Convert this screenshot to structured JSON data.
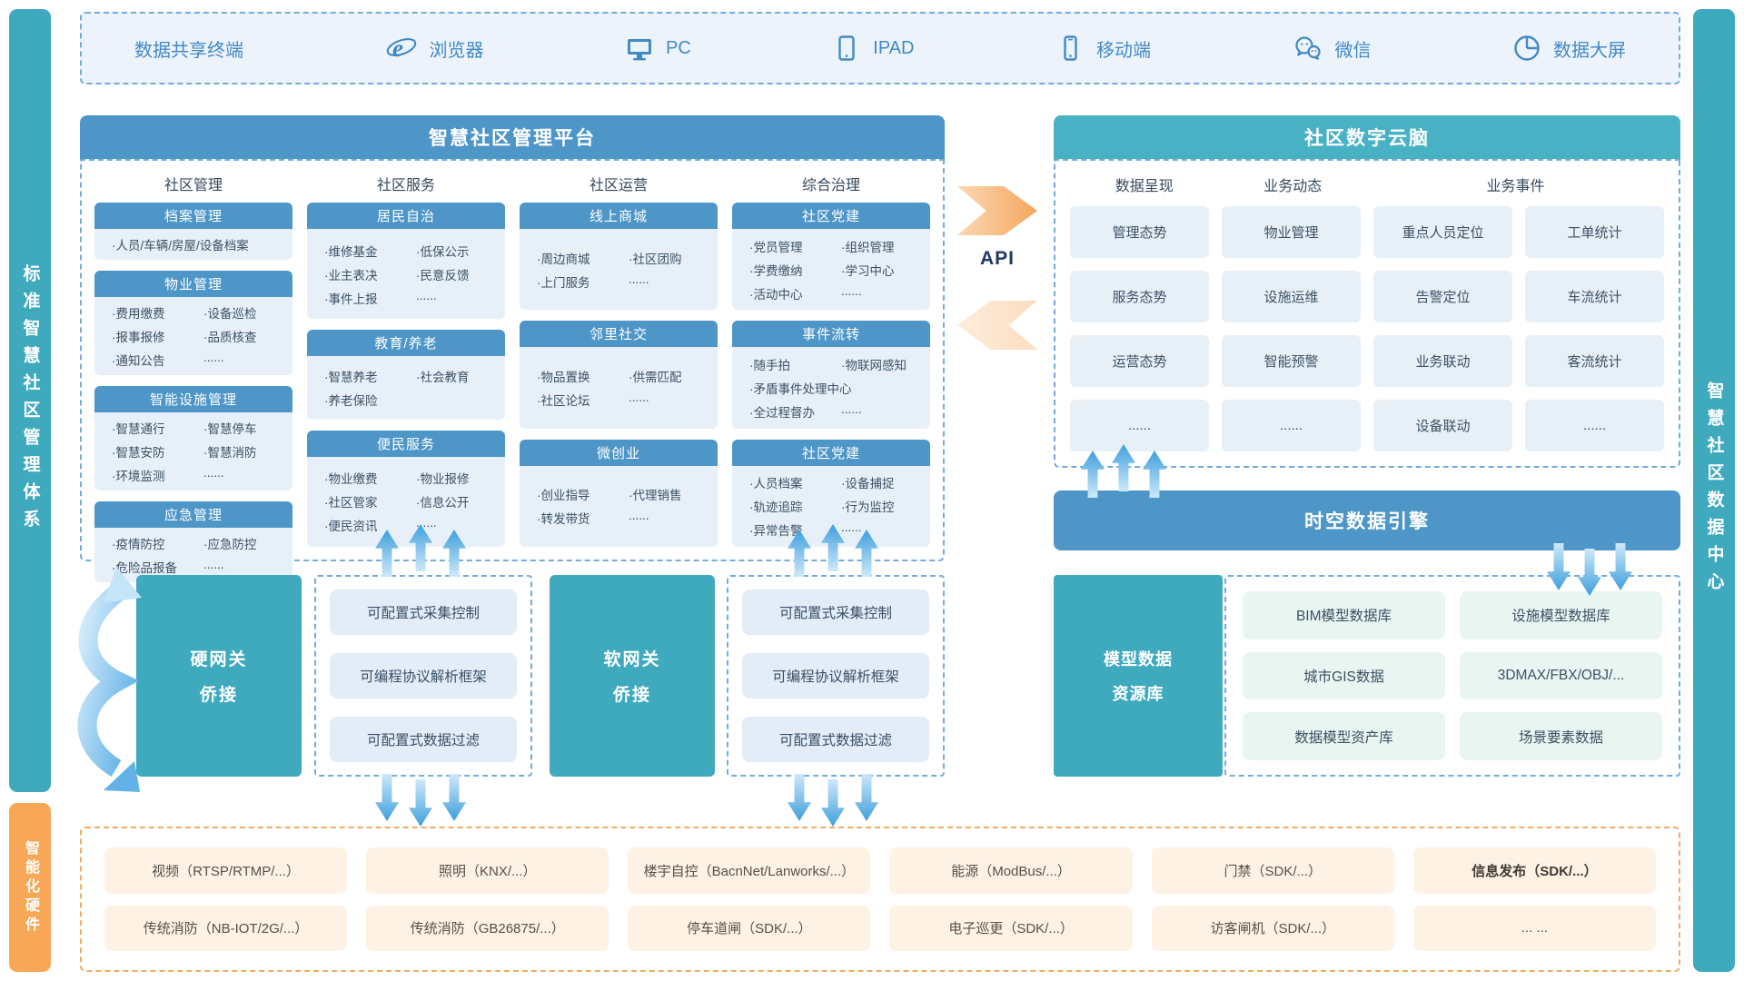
{
  "sidebars": {
    "left_top": "标准智慧社区管理体系",
    "left_bottom": "智能化硬件",
    "right": "智慧社区数据中心"
  },
  "top_bar": {
    "items": [
      {
        "icon": null,
        "label": "数据共享终端"
      },
      {
        "icon": "ie-browser-icon",
        "label": "浏览器"
      },
      {
        "icon": "pc-monitor-icon",
        "label": "PC"
      },
      {
        "icon": "tablet-icon",
        "label": "IPAD"
      },
      {
        "icon": "mobile-phone-icon",
        "label": "移动端"
      },
      {
        "icon": "wechat-icon",
        "label": "微信"
      },
      {
        "icon": "pie-chart-icon",
        "label": "数据大屏"
      }
    ]
  },
  "platform": {
    "title": "智慧社区管理平台",
    "columns": [
      {
        "title": "社区管理",
        "blocks": [
          {
            "header": "档案管理",
            "rows": [
              [
                "·人员/车辆/房屋/设备档案"
              ]
            ]
          },
          {
            "header": "物业管理",
            "rows": [
              [
                "·费用缴费",
                "·设备巡检"
              ],
              [
                "·报事报修",
                "·品质核查"
              ],
              [
                "·通知公告",
                "......"
              ]
            ]
          },
          {
            "header": "智能设施管理",
            "rows": [
              [
                "·智慧通行",
                "·智慧停车"
              ],
              [
                "·智慧安防",
                "·智慧消防"
              ],
              [
                "·环境监测",
                "......"
              ]
            ]
          },
          {
            "header": "应急管理",
            "rows": [
              [
                "·疫情防控",
                "·应急防控"
              ],
              [
                "·危险品报备",
                "......"
              ]
            ]
          }
        ]
      },
      {
        "title": "社区服务",
        "blocks": [
          {
            "header": "居民自治",
            "rows": [
              [
                "·维修基金",
                "·低保公示"
              ],
              [
                "·业主表决",
                "·民意反馈"
              ],
              [
                "·事件上报",
                "......"
              ]
            ]
          },
          {
            "header": "教育/养老",
            "rows": [
              [
                "·智慧养老",
                "·社会教育"
              ],
              [
                "·养老保险",
                ""
              ]
            ]
          },
          {
            "header": "便民服务",
            "rows": [
              [
                "·物业缴费",
                "·物业报修"
              ],
              [
                "·社区管家",
                "·信息公开"
              ],
              [
                "·便民资讯",
                "......"
              ]
            ]
          }
        ]
      },
      {
        "title": "社区运营",
        "blocks": [
          {
            "header": "线上商城",
            "rows": [
              [
                "·周边商城",
                "·社区团购"
              ],
              [
                "·上门服务",
                "......"
              ]
            ]
          },
          {
            "header": "邻里社交",
            "rows": [
              [
                "·物品置换",
                "·供需匹配"
              ],
              [
                "·社区论坛",
                "......"
              ]
            ]
          },
          {
            "header": "微创业",
            "rows": [
              [
                "·创业指导",
                "·代理销售"
              ],
              [
                "·转发带货",
                "......"
              ]
            ]
          }
        ]
      },
      {
        "title": "综合治理",
        "blocks": [
          {
            "header": "社区党建",
            "rows": [
              [
                "·党员管理",
                "·组织管理"
              ],
              [
                "·学费缴纳",
                "·学习中心"
              ],
              [
                "·活动中心",
                "......"
              ]
            ]
          },
          {
            "header": "事件流转",
            "rows": [
              [
                "·随手拍",
                "·物联网感知"
              ],
              [
                "·矛盾事件处理中心"
              ],
              [
                "·全过程督办",
                "......"
              ]
            ]
          },
          {
            "header": "社区党建",
            "rows": [
              [
                "·人员档案",
                "·设备捕捉"
              ],
              [
                "·轨迹追踪",
                "·行为监控"
              ],
              [
                "·异常告警",
                "......"
              ]
            ]
          }
        ]
      }
    ]
  },
  "api_label": "API",
  "cloud_brain": {
    "title": "社区数字云脑",
    "group_headers": [
      "数据呈现",
      "业务动态",
      "业务事件"
    ],
    "grid": [
      [
        "管理态势",
        "物业管理",
        "重点人员定位",
        "工单统计"
      ],
      [
        "服务态势",
        "设施运维",
        "告警定位",
        "车流统计"
      ],
      [
        "运营态势",
        "智能预警",
        "业务联动",
        "客流统计"
      ],
      [
        "......",
        "......",
        "设备联动",
        "......"
      ]
    ]
  },
  "spatiotemporal_engine": {
    "title": "时空数据引擎"
  },
  "model_repo": {
    "title_lines": [
      "模型数据",
      "资源库"
    ],
    "cells": [
      "BIM模型数据库",
      "设施模型数据库",
      "城市GIS数据",
      "3DMAX/FBX/OBJ/...",
      "数据模型资产库",
      "场景要素数据"
    ]
  },
  "gateways": [
    {
      "title_lines": [
        "硬网关",
        "侨接"
      ],
      "features": [
        "可配置式采集控制",
        "可编程协议解析框架",
        "可配置式数据过滤"
      ]
    },
    {
      "title_lines": [
        "软网关",
        "侨接"
      ],
      "features": [
        "可配置式采集控制",
        "可编程协议解析框架",
        "可配置式数据过滤"
      ]
    }
  ],
  "hardware": {
    "bold_label": "信息发布（SDK/...）",
    "rows": [
      [
        "视频（RTSP/RTMP/...）",
        "照明（KNX/...）",
        "楼宇自控（BacnNet/Lanworks/...）",
        "能源（ModBus/...）",
        "门禁（SDK/...）",
        "信息发布（SDK/...）"
      ],
      [
        "传统消防（NB-IOT/2G/...）",
        "传统消防（GB26875/...）",
        "停车道闸（SDK/...）",
        "电子巡更（SDK/...）",
        "访客闸机（SDK/...）",
        "... ..."
      ]
    ]
  },
  "colors": {
    "header_blue": "#4e96c8",
    "teal": "#3fa9be",
    "orange": "#f8a757",
    "dashed_blue": "#74abdf",
    "dashed_orange": "#f3aa63",
    "cell_blue": "#e7f0f9",
    "cell_green": "#e9f5f0",
    "cell_orange": "#fdf2e4"
  }
}
